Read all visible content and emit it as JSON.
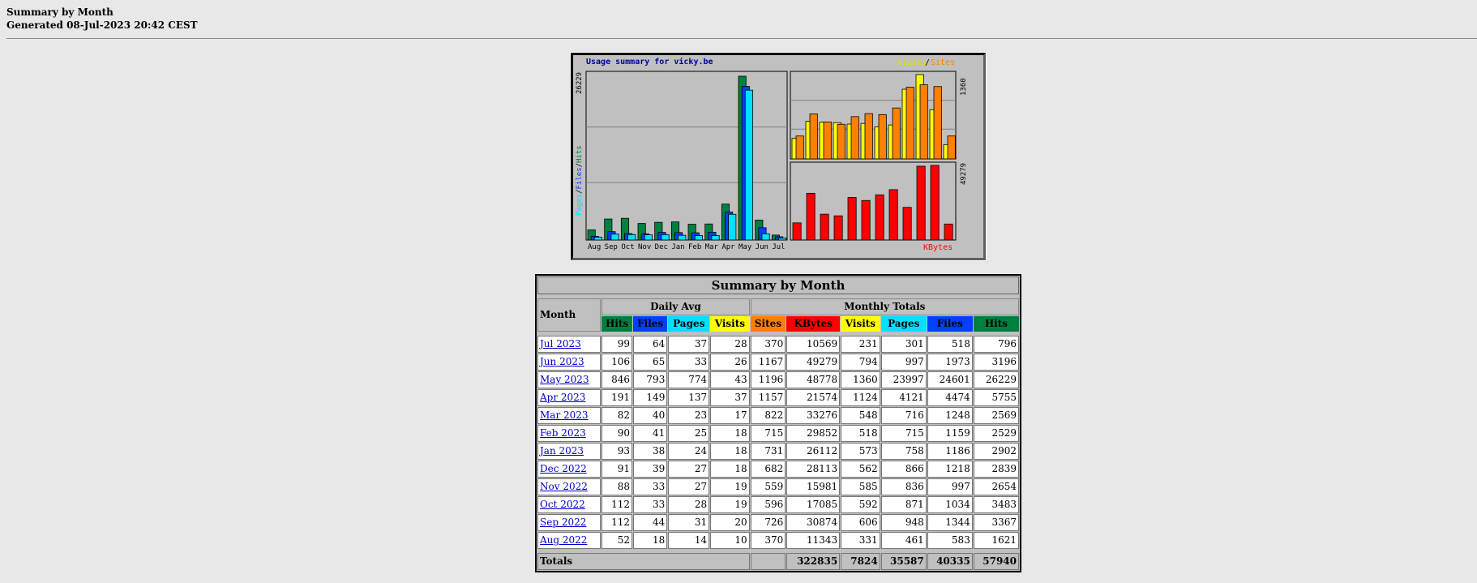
{
  "header": {
    "title": "Summary by Month",
    "generated": "Generated 08-Jul-2023 20:42 CEST"
  },
  "chart_data": {
    "type": "bar",
    "title": "Usage summary for vicky.be",
    "panels": [
      {
        "name": "left",
        "ylabel": "Pages/Files/Hits",
        "ymax": 26229,
        "categories": [
          "Aug",
          "Sep",
          "Oct",
          "Nov",
          "Dec",
          "Jan",
          "Feb",
          "Mar",
          "Apr",
          "May",
          "Jun",
          "Jul"
        ],
        "series": [
          {
            "name": "Hits",
            "color": "#008040",
            "values": [
              1621,
              3367,
              3483,
              2654,
              2839,
              2902,
              2529,
              2569,
              5755,
              26229,
              3196,
              796
            ]
          },
          {
            "name": "Files",
            "color": "#0040ff",
            "values": [
              583,
              1344,
              1034,
              997,
              1218,
              1186,
              1159,
              1248,
              4474,
              24601,
              1973,
              518
            ]
          },
          {
            "name": "Pages",
            "color": "#00e0ff",
            "values": [
              461,
              948,
              871,
              836,
              866,
              758,
              715,
              716,
              4121,
              23997,
              997,
              301
            ]
          }
        ]
      },
      {
        "name": "top-right",
        "legend": [
          "Visits",
          "Sites"
        ],
        "ymax": 1360,
        "series": [
          {
            "name": "Visits",
            "color": "#ffff00",
            "values": [
              331,
              606,
              592,
              585,
              562,
              573,
              518,
              548,
              1124,
              1360,
              794,
              231
            ]
          },
          {
            "name": "Sites",
            "color": "#ff8000",
            "values": [
              370,
              726,
              596,
              559,
              682,
              731,
              715,
              822,
              1157,
              1196,
              1167,
              370
            ]
          }
        ]
      },
      {
        "name": "bottom-right",
        "ylabel": "KBytes",
        "ymax": 49279,
        "series": [
          {
            "name": "KBytes",
            "color": "#ff0000",
            "values": [
              11343,
              30874,
              17085,
              15981,
              28113,
              26112,
              29852,
              33276,
              21574,
              48778,
              49279,
              10569
            ]
          }
        ]
      }
    ],
    "labels": {
      "left_y": [
        "Pages",
        "/",
        "Files",
        "/",
        "Hits"
      ],
      "left_max": "26229",
      "right_top_max": "1360",
      "right_bottom_max": "49279",
      "visits": "Visits",
      "slash": "/",
      "sites": "Sites",
      "kbytes": "KBytes"
    }
  },
  "table": {
    "title": "Summary by Month",
    "month_header": "Month",
    "daily_avg_header": "Daily Avg",
    "monthly_totals_header": "Monthly Totals",
    "daily_cols": [
      {
        "label": "Hits",
        "color": "#008040"
      },
      {
        "label": "Files",
        "color": "#0040ff"
      },
      {
        "label": "Pages",
        "color": "#00e0ff"
      },
      {
        "label": "Visits",
        "color": "#ffff00"
      }
    ],
    "monthly_cols": [
      {
        "label": "Sites",
        "color": "#ff8000"
      },
      {
        "label": "KBytes",
        "color": "#ff0000"
      },
      {
        "label": "Visits",
        "color": "#ffff00"
      },
      {
        "label": "Pages",
        "color": "#00e0ff"
      },
      {
        "label": "Files",
        "color": "#0040ff"
      },
      {
        "label": "Hits",
        "color": "#008040"
      }
    ],
    "rows": [
      {
        "month": "Jul 2023",
        "vals": [
          "99",
          "64",
          "37",
          "28",
          "370",
          "10569",
          "231",
          "301",
          "518",
          "796"
        ]
      },
      {
        "month": "Jun 2023",
        "vals": [
          "106",
          "65",
          "33",
          "26",
          "1167",
          "49279",
          "794",
          "997",
          "1973",
          "3196"
        ]
      },
      {
        "month": "May 2023",
        "vals": [
          "846",
          "793",
          "774",
          "43",
          "1196",
          "48778",
          "1360",
          "23997",
          "24601",
          "26229"
        ]
      },
      {
        "month": "Apr 2023",
        "vals": [
          "191",
          "149",
          "137",
          "37",
          "1157",
          "21574",
          "1124",
          "4121",
          "4474",
          "5755"
        ]
      },
      {
        "month": "Mar 2023",
        "vals": [
          "82",
          "40",
          "23",
          "17",
          "822",
          "33276",
          "548",
          "716",
          "1248",
          "2569"
        ]
      },
      {
        "month": "Feb 2023",
        "vals": [
          "90",
          "41",
          "25",
          "18",
          "715",
          "29852",
          "518",
          "715",
          "1159",
          "2529"
        ]
      },
      {
        "month": "Jan 2023",
        "vals": [
          "93",
          "38",
          "24",
          "18",
          "731",
          "26112",
          "573",
          "758",
          "1186",
          "2902"
        ]
      },
      {
        "month": "Dec 2022",
        "vals": [
          "91",
          "39",
          "27",
          "18",
          "682",
          "28113",
          "562",
          "866",
          "1218",
          "2839"
        ]
      },
      {
        "month": "Nov 2022",
        "vals": [
          "88",
          "33",
          "27",
          "19",
          "559",
          "15981",
          "585",
          "836",
          "997",
          "2654"
        ]
      },
      {
        "month": "Oct 2022",
        "vals": [
          "112",
          "33",
          "28",
          "19",
          "596",
          "17085",
          "592",
          "871",
          "1034",
          "3483"
        ]
      },
      {
        "month": "Sep 2022",
        "vals": [
          "112",
          "44",
          "31",
          "20",
          "726",
          "30874",
          "606",
          "948",
          "1344",
          "3367"
        ]
      },
      {
        "month": "Aug 2022",
        "vals": [
          "52",
          "18",
          "14",
          "10",
          "370",
          "11343",
          "331",
          "461",
          "583",
          "1621"
        ]
      }
    ],
    "totals": {
      "label": "Totals",
      "vals": [
        "322835",
        "7824",
        "35587",
        "40335",
        "57940"
      ]
    }
  }
}
